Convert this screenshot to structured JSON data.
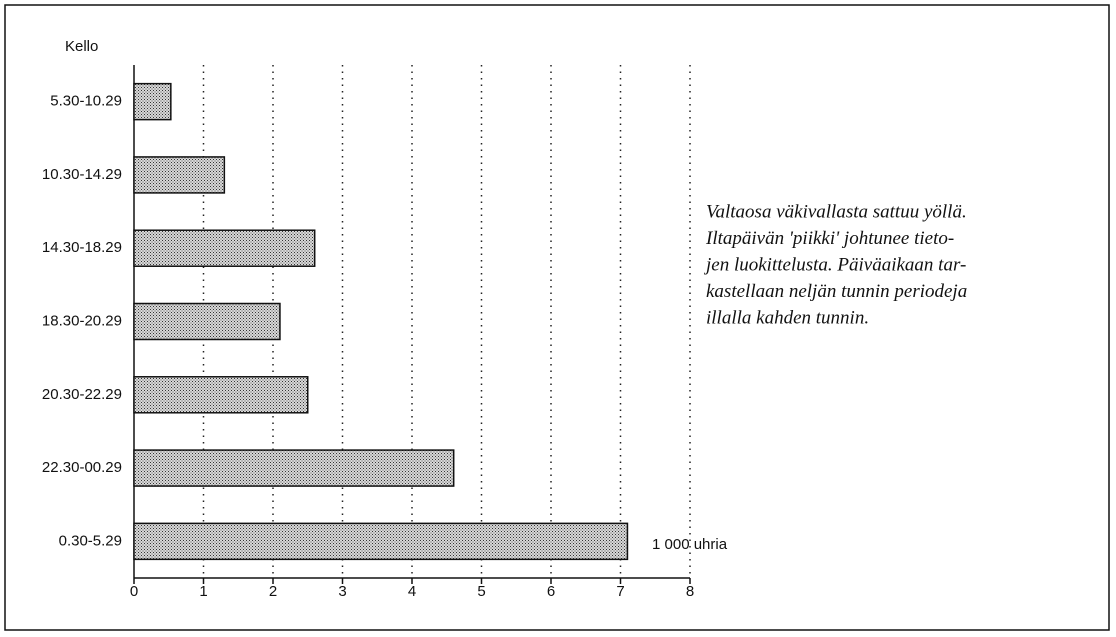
{
  "chart_data": {
    "type": "barh",
    "y_label": "Kello",
    "unit_label": "1 000 uhria",
    "annotation": [
      "Valtaosa väkivallasta sattuu yöllä.",
      "Iltapäivän 'piikki' johtunee tieto-",
      "jen luokittelusta. Päiväaikaan tar-",
      "kastellaan neljän tunnin periodeja",
      "illalla kahden tunnin."
    ],
    "categories": [
      "5.30-10.29",
      "10.30-14.29",
      "14.30-18.29",
      "18.30-20.29",
      "20.30-22.29",
      "22.30-00.29",
      "0.30-5.29"
    ],
    "values": [
      0.53,
      1.3,
      2.6,
      2.1,
      2.5,
      4.6,
      7.1
    ],
    "xlim": [
      0,
      8
    ],
    "xticks": [
      0,
      1,
      2,
      3,
      4,
      5,
      6,
      7,
      8
    ],
    "grid": true,
    "color": "#555"
  }
}
